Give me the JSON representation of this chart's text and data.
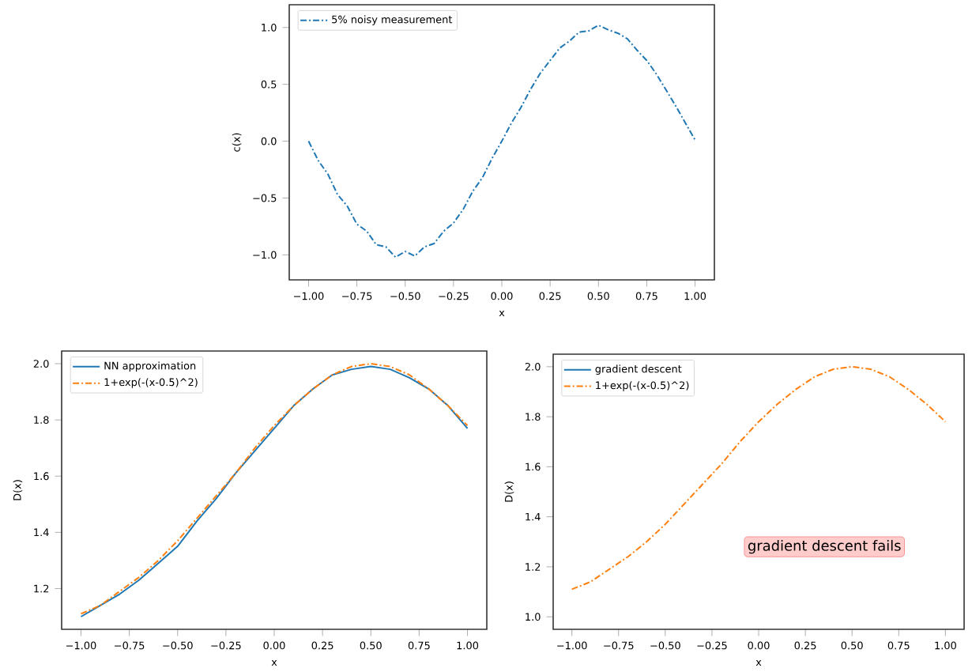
{
  "chart_data": [
    {
      "type": "line",
      "xlabel": "x",
      "ylabel": "c(x)",
      "legend": "top left",
      "xlim": [
        -1.1,
        1.1
      ],
      "ylim": [
        -1.22,
        1.2
      ],
      "xticks": [
        {
          "value": -1,
          "label": "−1.00"
        },
        {
          "value": -0.75,
          "label": "−0.75"
        },
        {
          "value": -0.5,
          "label": "−0.50"
        },
        {
          "value": -0.25,
          "label": "−0.25"
        },
        {
          "value": 0,
          "label": "0.00"
        },
        {
          "value": 0.25,
          "label": "0.25"
        },
        {
          "value": 0.5,
          "label": "0.50"
        },
        {
          "value": 0.75,
          "label": "0.75"
        },
        {
          "value": 1,
          "label": "1.00"
        }
      ],
      "yticks": [
        {
          "value": -1,
          "label": "−1.0"
        },
        {
          "value": -0.5,
          "label": "−0.5"
        },
        {
          "value": 0,
          "label": "0.0"
        },
        {
          "value": 0.5,
          "label": "0.5"
        },
        {
          "value": 1,
          "label": "1.0"
        }
      ],
      "x": [
        -1,
        -0.95,
        -0.9,
        -0.85,
        -0.8,
        -0.75,
        -0.7,
        -0.65,
        -0.6,
        -0.55,
        -0.5,
        -0.45,
        -0.4,
        -0.35,
        -0.3,
        -0.25,
        -0.2,
        -0.15,
        -0.1,
        -0.05,
        0,
        0.05,
        0.1,
        0.15,
        0.2,
        0.25,
        0.3,
        0.35,
        0.4,
        0.45,
        0.5,
        0.55,
        0.6,
        0.65,
        0.7,
        0.75,
        0.8,
        0.85,
        0.9,
        0.95,
        1
      ],
      "series": [
        {
          "name": "5% noisy measurement",
          "color": "#1f77b4",
          "line_style": "dashdot",
          "values": [
            0.0,
            -0.17,
            -0.29,
            -0.47,
            -0.57,
            -0.73,
            -0.79,
            -0.91,
            -0.93,
            -1.02,
            -0.97,
            -1.01,
            -0.93,
            -0.9,
            -0.79,
            -0.72,
            -0.6,
            -0.44,
            -0.32,
            -0.15,
            0.0,
            0.16,
            0.3,
            0.46,
            0.6,
            0.71,
            0.82,
            0.88,
            0.96,
            0.97,
            1.02,
            0.98,
            0.95,
            0.9,
            0.8,
            0.71,
            0.59,
            0.45,
            0.31,
            0.16,
            0.01
          ]
        }
      ]
    },
    {
      "type": "line",
      "xlabel": "x",
      "ylabel": "D(x)",
      "legend": "top left",
      "xlim": [
        -1.1,
        1.1
      ],
      "ylim": [
        1.055,
        2.045
      ],
      "xticks": [
        {
          "value": -1,
          "label": "−1.00"
        },
        {
          "value": -0.75,
          "label": "−0.75"
        },
        {
          "value": -0.5,
          "label": "−0.50"
        },
        {
          "value": -0.25,
          "label": "−0.25"
        },
        {
          "value": 0,
          "label": "0.00"
        },
        {
          "value": 0.25,
          "label": "0.25"
        },
        {
          "value": 0.5,
          "label": "0.50"
        },
        {
          "value": 0.75,
          "label": "0.75"
        },
        {
          "value": 1,
          "label": "1.00"
        }
      ],
      "yticks": [
        {
          "value": 1.2,
          "label": "1.2"
        },
        {
          "value": 1.4,
          "label": "1.4"
        },
        {
          "value": 1.6,
          "label": "1.6"
        },
        {
          "value": 1.8,
          "label": "1.8"
        },
        {
          "value": 2,
          "label": "2.0"
        }
      ],
      "x": [
        -1,
        -0.9,
        -0.8,
        -0.7,
        -0.6,
        -0.5,
        -0.4,
        -0.3,
        -0.2,
        -0.1,
        0,
        0.1,
        0.2,
        0.3,
        0.4,
        0.5,
        0.6,
        0.7,
        0.8,
        0.9,
        1
      ],
      "series": [
        {
          "name": "NN approximation",
          "color": "#1f77b4",
          "line_style": "solid",
          "values": [
            1.1,
            1.14,
            1.18,
            1.23,
            1.29,
            1.35,
            1.44,
            1.52,
            1.61,
            1.69,
            1.77,
            1.85,
            1.91,
            1.96,
            1.98,
            1.99,
            1.98,
            1.95,
            1.91,
            1.85,
            1.77
          ]
        },
        {
          "name": "1+exp(-(x-0.5)^2)",
          "color": "#ff7f0e",
          "line_style": "dashdot",
          "values": [
            1.11,
            1.14,
            1.19,
            1.24,
            1.3,
            1.37,
            1.45,
            1.53,
            1.61,
            1.7,
            1.78,
            1.85,
            1.91,
            1.96,
            1.99,
            2.0,
            1.99,
            1.96,
            1.91,
            1.85,
            1.78
          ]
        }
      ]
    },
    {
      "type": "line",
      "xlabel": "x",
      "ylabel": "D(x)",
      "legend": "top left",
      "xlim": [
        -1.1,
        1.1
      ],
      "ylim": [
        0.95,
        2.05
      ],
      "xticks": [
        {
          "value": -1,
          "label": "−1.00"
        },
        {
          "value": -0.75,
          "label": "−0.75"
        },
        {
          "value": -0.5,
          "label": "−0.50"
        },
        {
          "value": -0.25,
          "label": "−0.25"
        },
        {
          "value": 0,
          "label": "0.00"
        },
        {
          "value": 0.25,
          "label": "0.25"
        },
        {
          "value": 0.5,
          "label": "0.50"
        },
        {
          "value": 0.75,
          "label": "0.75"
        },
        {
          "value": 1,
          "label": "1.00"
        }
      ],
      "yticks": [
        {
          "value": 1,
          "label": "1.0"
        },
        {
          "value": 1.2,
          "label": "1.2"
        },
        {
          "value": 1.4,
          "label": "1.4"
        },
        {
          "value": 1.6,
          "label": "1.6"
        },
        {
          "value": 1.8,
          "label": "1.8"
        },
        {
          "value": 2,
          "label": "2.0"
        }
      ],
      "annotations": [
        "gradient descent fails"
      ],
      "x": [
        -1,
        -0.9,
        -0.8,
        -0.7,
        -0.6,
        -0.5,
        -0.4,
        -0.3,
        -0.2,
        -0.1,
        0,
        0.1,
        0.2,
        0.3,
        0.4,
        0.5,
        0.6,
        0.7,
        0.8,
        0.9,
        1
      ],
      "series": [
        {
          "name": "gradient descent",
          "color": "#1f77b4",
          "line_style": "solid",
          "values": [
            null,
            null,
            null,
            null,
            null,
            null,
            null,
            null,
            null,
            null,
            null,
            null,
            null,
            null,
            null,
            null,
            null,
            null,
            null,
            null,
            null
          ]
        },
        {
          "name": "1+exp(-(x-0.5)^2)",
          "color": "#ff7f0e",
          "line_style": "dashdot",
          "values": [
            1.11,
            1.14,
            1.19,
            1.24,
            1.3,
            1.37,
            1.45,
            1.53,
            1.61,
            1.7,
            1.78,
            1.85,
            1.91,
            1.96,
            1.99,
            2.0,
            1.99,
            1.96,
            1.91,
            1.85,
            1.78
          ]
        }
      ]
    }
  ]
}
